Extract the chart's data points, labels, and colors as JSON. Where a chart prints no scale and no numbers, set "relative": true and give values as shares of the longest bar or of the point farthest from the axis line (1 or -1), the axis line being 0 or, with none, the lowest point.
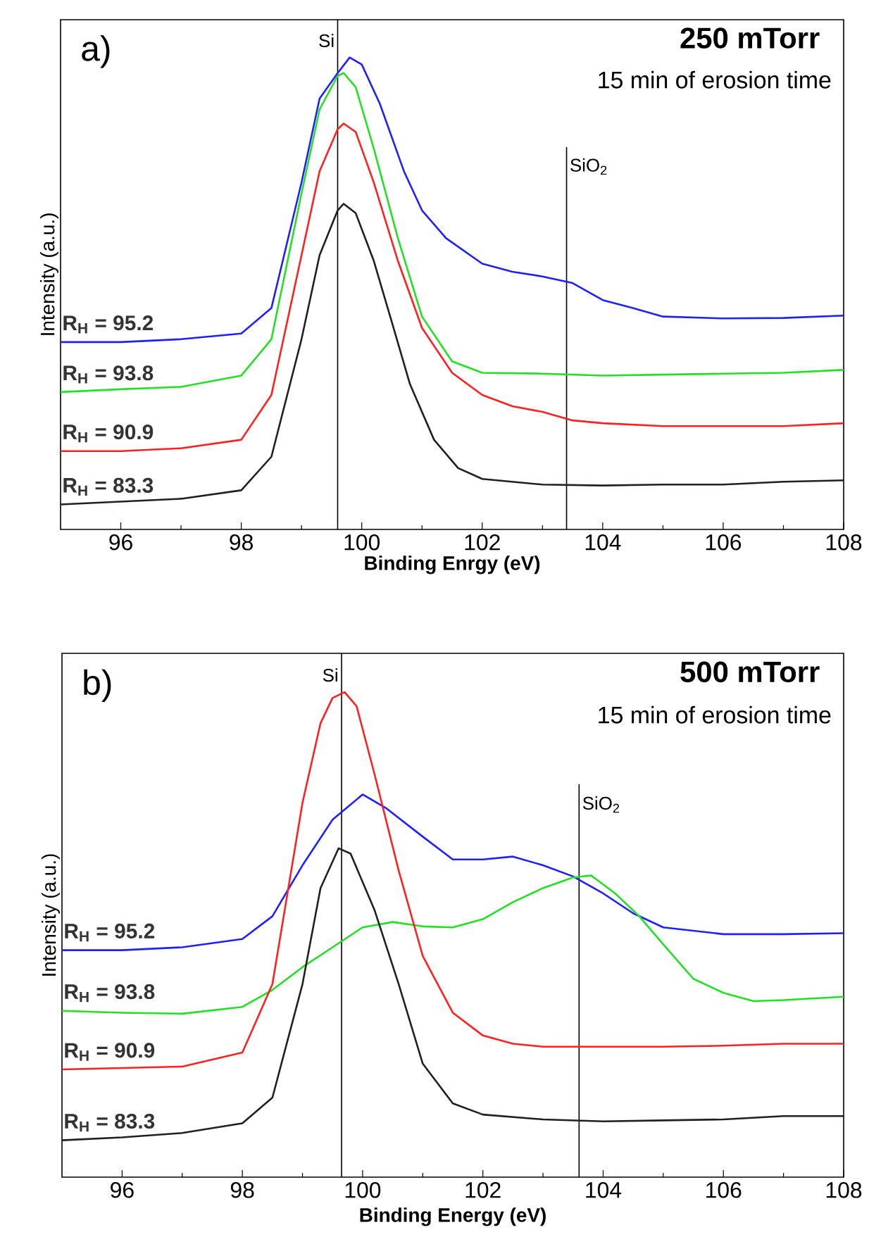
{
  "chart_data": [
    {
      "type": "line",
      "relative": true,
      "title": "250 mTorr",
      "subtitle": "15 min of erosion time",
      "xlabel": "Binding Enrgy (eV)",
      "ylabel": "Intensity (a.u.)",
      "annotations": [
        "a)"
      ],
      "tick_labels": "x",
      "xlim": [
        95,
        108
      ],
      "xticks": [
        96,
        98,
        100,
        102,
        104,
        106,
        108
      ],
      "ref_lines": [
        {
          "axis": "x",
          "value": 99.6,
          "label": "Si"
        },
        {
          "axis": "x",
          "value": 103.4,
          "label": "SiO$_{2}$"
        }
      ],
      "series": [
        {
          "name": "R$_{H}$ = 95.2",
          "color": "#2020ff",
          "x": [
            95,
            96,
            97,
            98,
            98.5,
            99,
            99.3,
            99.6,
            99.8,
            100,
            100.3,
            100.7,
            101,
            101.4,
            102,
            102.5,
            103,
            103.5,
            104,
            104.5,
            105,
            106,
            107,
            108
          ],
          "values": [
            0.397,
            0.397,
            0.403,
            0.415,
            0.469,
            0.735,
            0.913,
            0.967,
            1.0,
            0.985,
            0.902,
            0.759,
            0.676,
            0.617,
            0.563,
            0.546,
            0.536,
            0.522,
            0.486,
            0.469,
            0.451,
            0.447,
            0.448,
            0.453
          ]
        },
        {
          "name": "R$_{H}$ = 93.8",
          "color": "#22e022",
          "x": [
            95,
            96,
            97,
            98,
            98.5,
            99,
            99.3,
            99.6,
            99.7,
            99.9,
            100.2,
            100.6,
            101,
            101.5,
            102,
            103,
            104,
            105,
            106,
            107,
            108
          ],
          "values": [
            0.291,
            0.297,
            0.302,
            0.326,
            0.403,
            0.712,
            0.89,
            0.961,
            0.967,
            0.937,
            0.807,
            0.617,
            0.451,
            0.356,
            0.332,
            0.33,
            0.326,
            0.328,
            0.33,
            0.332,
            0.338
          ]
        },
        {
          "name": "R$_{H}$ = 90.9",
          "color": "#ff2020",
          "x": [
            95,
            96,
            97,
            98,
            98.5,
            99,
            99.3,
            99.6,
            99.7,
            99.9,
            100.2,
            100.6,
            101,
            101.5,
            102,
            102.5,
            103,
            103.5,
            104,
            105,
            106,
            107,
            108
          ],
          "values": [
            0.166,
            0.166,
            0.172,
            0.19,
            0.285,
            0.581,
            0.759,
            0.848,
            0.86,
            0.842,
            0.735,
            0.569,
            0.427,
            0.332,
            0.285,
            0.261,
            0.249,
            0.231,
            0.225,
            0.219,
            0.219,
            0.219,
            0.225
          ]
        },
        {
          "name": "R$_{H}$ = 83.3",
          "color": "#202020",
          "x": [
            95,
            96,
            97,
            98,
            98.5,
            99,
            99.3,
            99.6,
            99.7,
            99.9,
            100.2,
            100.5,
            100.8,
            101.2,
            101.6,
            102,
            103,
            104,
            105,
            106,
            107,
            108
          ],
          "values": [
            0.053,
            0.059,
            0.065,
            0.083,
            0.154,
            0.403,
            0.581,
            0.676,
            0.69,
            0.67,
            0.569,
            0.439,
            0.308,
            0.19,
            0.13,
            0.107,
            0.095,
            0.093,
            0.095,
            0.095,
            0.101,
            0.104
          ]
        }
      ]
    },
    {
      "type": "line",
      "relative": true,
      "title": "500 mTorr",
      "subtitle": "15 min of erosion time",
      "xlabel": "Binding Energy (eV)",
      "ylabel": "Intensity (a.u.)",
      "annotations": [
        "b)"
      ],
      "tick_labels": "x",
      "xlim": [
        95,
        108
      ],
      "xticks": [
        96,
        98,
        100,
        102,
        104,
        106,
        108
      ],
      "ref_lines": [
        {
          "axis": "x",
          "value": 99.65,
          "label": "Si"
        },
        {
          "axis": "x",
          "value": 103.6,
          "label": "SiO$_{2}$"
        }
      ],
      "series": [
        {
          "name": "R$_{H}$ = 95.2",
          "color": "#2020ff",
          "x": [
            95,
            96,
            97,
            98,
            98.5,
            99,
            99.5,
            100,
            100.4,
            101,
            101.5,
            102,
            102.5,
            103,
            103.5,
            104,
            104.5,
            105,
            106,
            107,
            108
          ],
          "values": [
            0.468,
            0.468,
            0.474,
            0.491,
            0.538,
            0.643,
            0.737,
            0.789,
            0.76,
            0.702,
            0.655,
            0.655,
            0.661,
            0.643,
            0.62,
            0.585,
            0.544,
            0.515,
            0.501,
            0.501,
            0.503
          ]
        },
        {
          "name": "R$_{H}$ = 93.8",
          "color": "#22e022",
          "x": [
            95,
            96,
            97,
            98,
            98.5,
            99,
            99.5,
            100,
            100.5,
            101,
            101.5,
            102,
            102.5,
            103,
            103.5,
            103.8,
            104.2,
            104.6,
            105,
            105.5,
            106,
            106.5,
            107,
            108
          ],
          "values": [
            0.343,
            0.339,
            0.337,
            0.351,
            0.386,
            0.433,
            0.474,
            0.515,
            0.526,
            0.517,
            0.515,
            0.532,
            0.567,
            0.596,
            0.618,
            0.622,
            0.585,
            0.538,
            0.48,
            0.409,
            0.38,
            0.363,
            0.365,
            0.372
          ]
        },
        {
          "name": "R$_{H}$ = 90.9",
          "color": "#ff2020",
          "x": [
            95,
            96,
            97,
            98,
            98.5,
            99,
            99.3,
            99.5,
            99.7,
            99.9,
            100.2,
            100.6,
            101,
            101.5,
            102,
            102.5,
            103,
            104,
            105,
            106,
            107,
            108
          ],
          "values": [
            0.222,
            0.225,
            0.228,
            0.257,
            0.398,
            0.772,
            0.936,
            0.988,
            1.0,
            0.971,
            0.83,
            0.632,
            0.456,
            0.339,
            0.292,
            0.275,
            0.269,
            0.269,
            0.269,
            0.271,
            0.275,
            0.275
          ]
        },
        {
          "name": "R$_{H}$ = 83.3",
          "color": "#202020",
          "x": [
            95,
            96,
            97,
            98,
            98.5,
            99,
            99.3,
            99.6,
            99.8,
            100.2,
            100.6,
            101,
            101.5,
            102,
            103,
            104,
            105,
            106,
            107,
            108
          ],
          "values": [
            0.076,
            0.082,
            0.091,
            0.111,
            0.164,
            0.398,
            0.596,
            0.678,
            0.667,
            0.55,
            0.398,
            0.234,
            0.152,
            0.129,
            0.119,
            0.115,
            0.117,
            0.119,
            0.126,
            0.126
          ]
        }
      ]
    }
  ]
}
